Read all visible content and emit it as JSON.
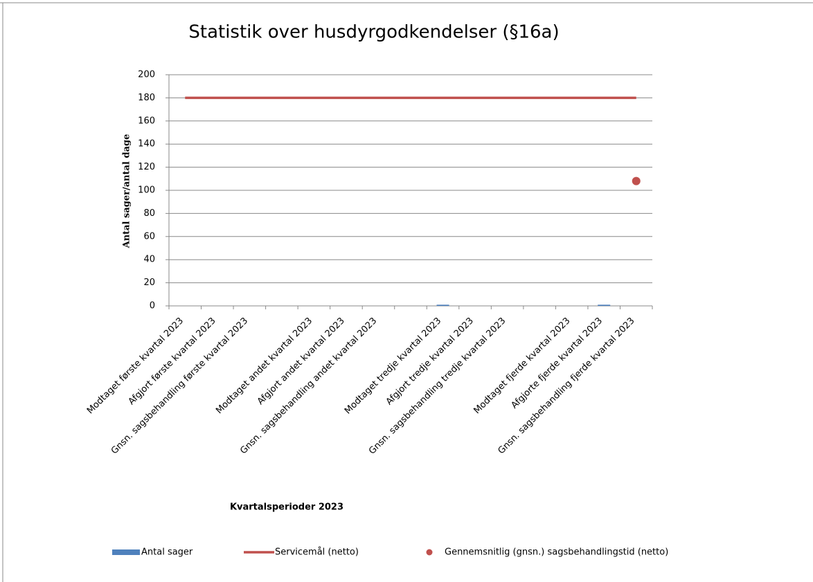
{
  "chart_data": {
    "type": "combo",
    "title": "Statistik over husdyrgodkendelser  (§16a)",
    "x_label": "Kvartalsperioder 2023",
    "y_label": "Antal sager/antal dage",
    "categories": [
      "Modtaget første kvartal 2023",
      "Afgjort første kvartal 2023",
      "Gnsn. sagsbehandling første kvartal 2023",
      null,
      "Modtaget andet kvartal  2023",
      "Afgjort andet kvartal 2023",
      "Gnsn. sagsbehandling andet kvartal 2023",
      null,
      "Modtaget tredje kvartal 2023",
      "Afgjort tredje kvartal 2023",
      "Gnsn. sagsbehandling tredje kvartal 2023",
      null,
      "Modtaget fjerde kvartal 2023",
      "Afgjorte fjerde kvartal 2023",
      "Gnsn. sagsbehandling fjerde kvartal 2023"
    ],
    "series": [
      {
        "name": "Antal sager",
        "type": "bar",
        "color": "#4f81bd",
        "values": [
          0,
          0,
          null,
          null,
          0,
          0,
          null,
          null,
          1,
          0,
          null,
          null,
          0,
          1,
          null
        ]
      },
      {
        "name": "Servicemål (netto)",
        "type": "line",
        "color": "#c0504d",
        "values": [
          180,
          180,
          180,
          180,
          180,
          180,
          180,
          180,
          180,
          180,
          180,
          180,
          180,
          180,
          180
        ]
      },
      {
        "name": "Gennemsnitlig (gnsn.) sagsbehandlingstid (netto)",
        "type": "scatter",
        "color": "#c0504d",
        "values": [
          null,
          null,
          null,
          null,
          null,
          null,
          null,
          null,
          null,
          null,
          null,
          null,
          null,
          null,
          108
        ]
      }
    ],
    "ylim": [
      0,
      200
    ],
    "yticks": [
      0,
      20,
      40,
      60,
      80,
      100,
      120,
      140,
      160,
      180,
      200
    ],
    "grid": true,
    "legend": "bottom"
  }
}
